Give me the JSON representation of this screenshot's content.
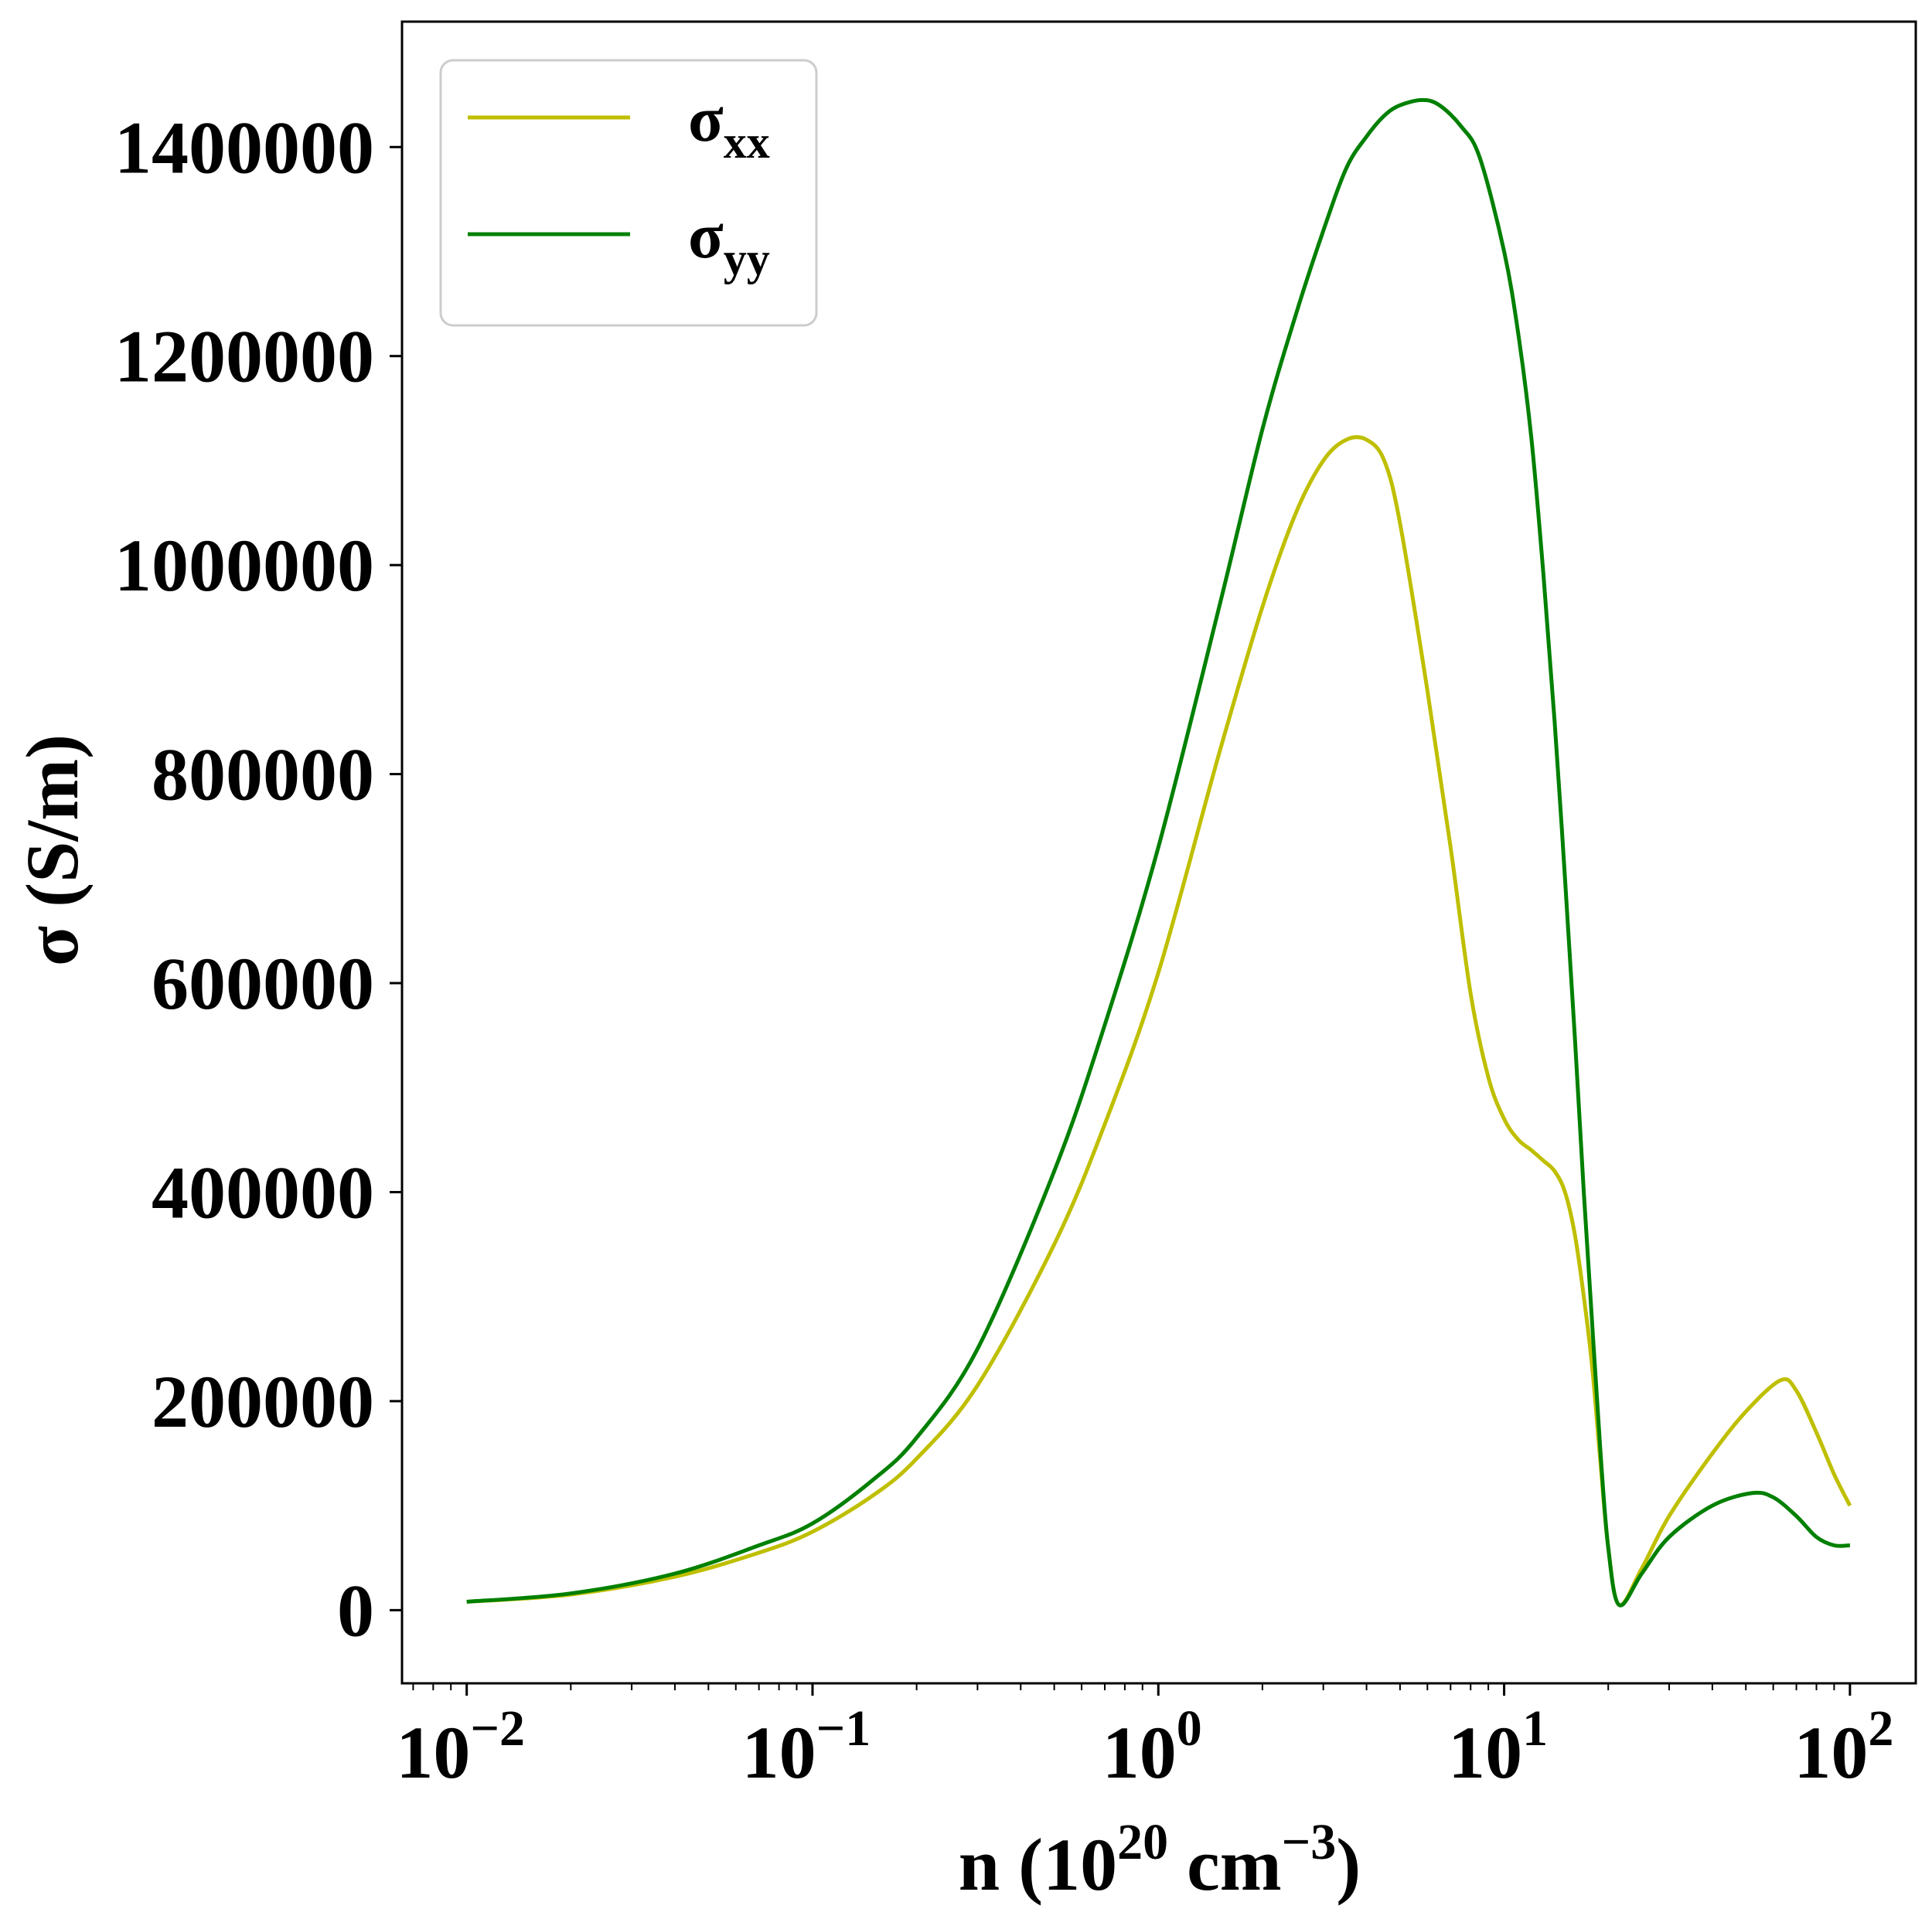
{
  "chart_data": {
    "type": "line",
    "xscale": "log",
    "xlim": [
      0.0065,
      155
    ],
    "ylim": [
      -70000,
      1520000
    ],
    "x_ticks": [
      {
        "value": 0.01,
        "base": "10",
        "exp": "−2"
      },
      {
        "value": 0.1,
        "base": "10",
        "exp": "−1"
      },
      {
        "value": 1,
        "base": "10",
        "exp": "0"
      },
      {
        "value": 10,
        "base": "10",
        "exp": "1"
      },
      {
        "value": 100,
        "base": "10",
        "exp": "2"
      }
    ],
    "y_ticks": [
      0,
      200000,
      400000,
      600000,
      800000,
      1000000,
      1200000,
      1400000
    ],
    "y_tick_labels": [
      "0",
      "200000",
      "400000",
      "600000",
      "800000",
      "1000000",
      "1200000",
      "1400000"
    ],
    "xlabel": {
      "pre": "n (10",
      "sup1": "20",
      "mid": " cm",
      "sup2": "−3",
      "post": ")"
    },
    "ylabel": "σ (S/m)",
    "grid": false,
    "legend": {
      "placement": "top-left"
    },
    "series": [
      {
        "name": "σxx",
        "label_main": "σ",
        "label_sub": "xx",
        "color": "#bfbf00",
        "x": [
          0.01,
          0.02,
          0.04,
          0.07,
          0.1,
          0.15,
          0.2,
          0.3,
          0.5,
          0.7,
          1.0,
          1.5,
          2.0,
          2.5,
          3.0,
          3.5,
          4.0,
          4.5,
          5.0,
          6.0,
          7.0,
          8.0,
          9.0,
          10.0,
          11.0,
          12.0,
          13.0,
          14.0,
          15.0,
          16.0,
          17.0,
          18.0,
          19.0,
          20.0,
          21.5,
          25.0,
          30.0,
          40.0,
          50.0,
          63.0,
          70.0,
          80.0,
          90.0,
          100.0
        ],
        "y": [
          8000,
          15000,
          32000,
          55000,
          75000,
          110000,
          145000,
          215000,
          350000,
          465000,
          610000,
          820000,
          960000,
          1050000,
          1100000,
          1120000,
          1120000,
          1100000,
          1040000,
          880000,
          730000,
          590000,
          510000,
          470000,
          450000,
          440000,
          430000,
          420000,
          400000,
          360000,
          300000,
          230000,
          140000,
          60000,
          5000,
          40000,
          90000,
          150000,
          190000,
          220000,
          210000,
          170000,
          130000,
          100000
        ]
      },
      {
        "name": "σyy",
        "label_main": "σ",
        "label_sub": "yy",
        "color": "#008000",
        "x": [
          0.01,
          0.02,
          0.04,
          0.07,
          0.1,
          0.15,
          0.2,
          0.3,
          0.5,
          0.7,
          1.0,
          1.5,
          2.0,
          2.5,
          3.0,
          3.5,
          4.0,
          4.5,
          5.0,
          5.8,
          6.5,
          7.5,
          8.5,
          10.0,
          11.0,
          12.0,
          13.0,
          14.0,
          15.0,
          16.0,
          17.0,
          18.0,
          19.0,
          20.0,
          21.5,
          25.0,
          30.0,
          40.0,
          52.0,
          60.0,
          70.0,
          80.0,
          90.0,
          100.0
        ],
        "y": [
          8000,
          16000,
          35000,
          62000,
          83000,
          125000,
          165000,
          250000,
          420000,
          560000,
          730000,
          960000,
          1130000,
          1240000,
          1320000,
          1380000,
          1410000,
          1430000,
          1440000,
          1445000,
          1440000,
          1420000,
          1390000,
          1300000,
          1220000,
          1120000,
          990000,
          850000,
          700000,
          550000,
          400000,
          270000,
          150000,
          60000,
          5000,
          35000,
          70000,
          100000,
          112000,
          108000,
          90000,
          70000,
          62000,
          62000
        ]
      }
    ]
  }
}
